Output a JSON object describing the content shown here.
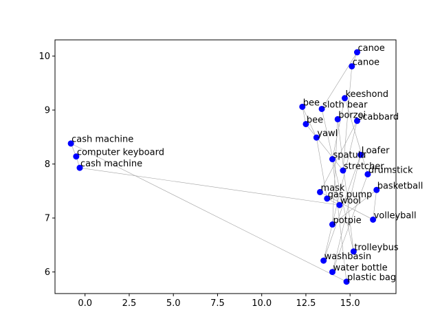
{
  "chart_data": {
    "type": "scatter",
    "title": "",
    "xlabel": "",
    "ylabel": "",
    "xlim": [
      -1.7,
      17.6
    ],
    "ylim": [
      5.6,
      10.3
    ],
    "xticks": [
      "0.0",
      "2.5",
      "5.0",
      "7.5",
      "10.0",
      "12.5",
      "15.0"
    ],
    "yticks": [
      "6",
      "7",
      "8",
      "9",
      "10"
    ],
    "grid": false,
    "point_color": "#0000ff",
    "line_color": "#a0a0a0",
    "points": [
      {
        "label": "canoe",
        "x": 15.4,
        "y": 10.07
      },
      {
        "label": "canoe",
        "x": 15.1,
        "y": 9.81
      },
      {
        "label": "keeshond",
        "x": 14.7,
        "y": 9.22
      },
      {
        "label": "bee",
        "x": 12.3,
        "y": 9.06
      },
      {
        "label": "sloth bear",
        "x": 13.4,
        "y": 9.02
      },
      {
        "label": "borzoi",
        "x": 14.3,
        "y": 8.83
      },
      {
        "label": "scabbard",
        "x": 15.4,
        "y": 8.8
      },
      {
        "label": "bee",
        "x": 12.5,
        "y": 8.74
      },
      {
        "label": "yawl",
        "x": 13.1,
        "y": 8.49
      },
      {
        "label": "cash machine",
        "x": -0.8,
        "y": 8.38
      },
      {
        "label": "Loafer",
        "x": 15.6,
        "y": 8.17
      },
      {
        "label": "computer keyboard",
        "x": -0.5,
        "y": 8.14
      },
      {
        "label": "spatula",
        "x": 14.0,
        "y": 8.09
      },
      {
        "label": "cash machine",
        "x": -0.3,
        "y": 7.93
      },
      {
        "label": "stretcher",
        "x": 14.6,
        "y": 7.88
      },
      {
        "label": "drumstick",
        "x": 16.0,
        "y": 7.81
      },
      {
        "label": "basketball",
        "x": 16.5,
        "y": 7.52
      },
      {
        "label": "mask",
        "x": 13.3,
        "y": 7.48
      },
      {
        "label": "gas pump",
        "x": 13.7,
        "y": 7.36
      },
      {
        "label": "wool",
        "x": 14.4,
        "y": 7.24
      },
      {
        "label": "volleyball",
        "x": 16.3,
        "y": 6.97
      },
      {
        "label": "potpie",
        "x": 14.0,
        "y": 6.88
      },
      {
        "label": "trolleybus",
        "x": 15.2,
        "y": 6.38
      },
      {
        "label": "washbasin",
        "x": 13.5,
        "y": 6.21
      },
      {
        "label": "water bottle",
        "x": 14.0,
        "y": 6.0
      },
      {
        "label": "plastic bag",
        "x": 14.8,
        "y": 5.82
      }
    ],
    "path_order": [
      9,
      11,
      13,
      19,
      18,
      8,
      3,
      7,
      14,
      1,
      0,
      4,
      22,
      5,
      21,
      16,
      20,
      17,
      6,
      23,
      10,
      24,
      15,
      2,
      12,
      25,
      9
    ]
  }
}
